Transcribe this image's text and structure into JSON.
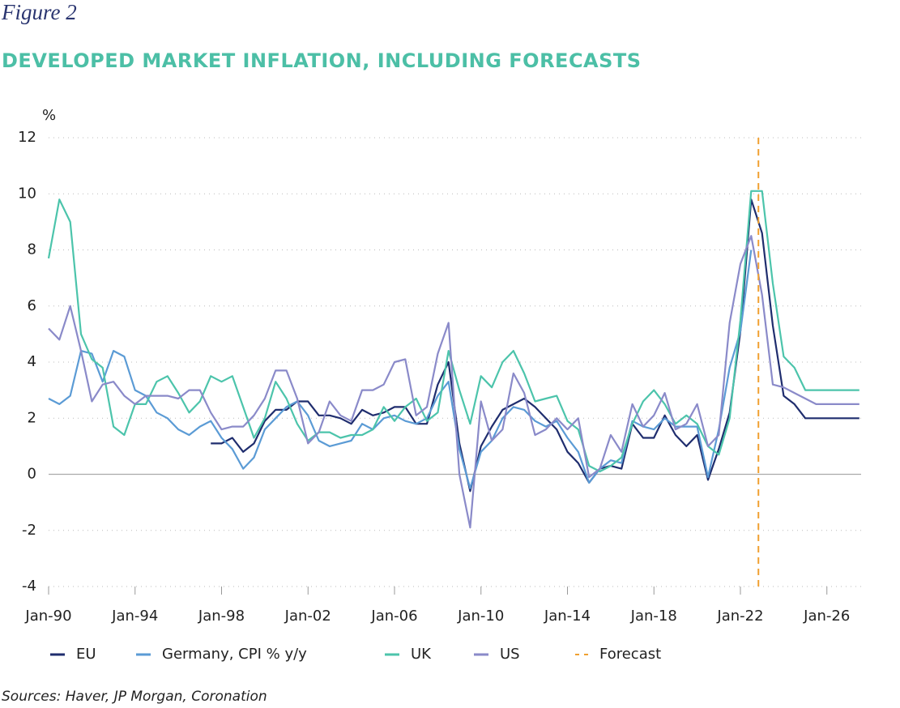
{
  "figure_label": "Figure 2",
  "sources": "Sources: Haver, JP Morgan, Coronation",
  "chart_data": {
    "type": "line",
    "title": "DEVELOPED MARKET INFLATION, INCLUDING FORECASTS",
    "y_label": "%",
    "x": [
      "1990-01",
      "1990-07",
      "1991-01",
      "1991-07",
      "1992-01",
      "1992-07",
      "1993-01",
      "1993-07",
      "1994-01",
      "1994-07",
      "1995-01",
      "1995-07",
      "1996-01",
      "1996-07",
      "1997-01",
      "1997-07",
      "1998-01",
      "1998-07",
      "1999-01",
      "1999-07",
      "2000-01",
      "2000-07",
      "2001-01",
      "2001-07",
      "2002-01",
      "2002-07",
      "2003-01",
      "2003-07",
      "2004-01",
      "2004-07",
      "2005-01",
      "2005-07",
      "2006-01",
      "2006-07",
      "2007-01",
      "2007-07",
      "2008-01",
      "2008-07",
      "2009-01",
      "2009-07",
      "2010-01",
      "2010-07",
      "2011-01",
      "2011-07",
      "2012-01",
      "2012-07",
      "2013-01",
      "2013-07",
      "2014-01",
      "2014-07",
      "2015-01",
      "2015-07",
      "2016-01",
      "2016-07",
      "2017-01",
      "2017-07",
      "2018-01",
      "2018-07",
      "2019-01",
      "2019-07",
      "2020-01",
      "2020-07",
      "2021-01",
      "2021-07",
      "2022-01",
      "2022-07",
      "2023-01",
      "2023-07",
      "2024-01",
      "2024-07",
      "2025-01",
      "2025-07",
      "2026-01",
      "2026-07",
      "2027-01",
      "2027-07"
    ],
    "xlim": [
      "1990-01",
      "2027-08"
    ],
    "xticks": [
      {
        "value": "1990-01",
        "label": "Jan-90"
      },
      {
        "value": "1994-01",
        "label": "Jan-94"
      },
      {
        "value": "1998-01",
        "label": "Jan-98"
      },
      {
        "value": "2002-01",
        "label": "Jan-02"
      },
      {
        "value": "2006-01",
        "label": "Jan-06"
      },
      {
        "value": "2010-01",
        "label": "Jan-10"
      },
      {
        "value": "2014-01",
        "label": "Jan-14"
      },
      {
        "value": "2018-01",
        "label": "Jan-18"
      },
      {
        "value": "2022-01",
        "label": "Jan-22"
      },
      {
        "value": "2026-01",
        "label": "Jan-26"
      }
    ],
    "ylim": [
      -4,
      12
    ],
    "yticks": [
      -4,
      -2,
      0,
      2,
      4,
      6,
      8,
      10,
      12
    ],
    "grid": true,
    "series": [
      {
        "name": "EU",
        "color": "#1f2d6e",
        "values": [
          null,
          null,
          null,
          null,
          null,
          null,
          null,
          null,
          null,
          null,
          null,
          null,
          null,
          null,
          null,
          1.1,
          1.1,
          1.3,
          0.8,
          1.1,
          1.9,
          2.3,
          2.3,
          2.6,
          2.6,
          2.1,
          2.1,
          2.0,
          1.8,
          2.3,
          2.1,
          2.2,
          2.4,
          2.4,
          1.8,
          1.8,
          3.2,
          4.0,
          1.1,
          -0.6,
          1.0,
          1.7,
          2.3,
          2.5,
          2.7,
          2.4,
          2.0,
          1.6,
          0.8,
          0.4,
          -0.3,
          0.2,
          0.3,
          0.2,
          1.8,
          1.3,
          1.3,
          2.1,
          1.4,
          1.0,
          1.4,
          -0.2,
          0.9,
          2.2,
          5.1,
          9.8,
          8.6,
          5.3,
          2.8,
          2.5,
          2.0,
          2.0,
          2.0,
          2.0,
          2.0,
          2.0
        ]
      },
      {
        "name": "Germany, CPI % y/y",
        "color": "#5b9bd5",
        "values": [
          2.7,
          2.5,
          2.8,
          4.4,
          4.3,
          3.3,
          4.4,
          4.2,
          3.0,
          2.8,
          2.2,
          2.0,
          1.6,
          1.4,
          1.7,
          1.9,
          1.3,
          0.9,
          0.2,
          0.6,
          1.6,
          2.0,
          2.4,
          2.6,
          2.1,
          1.2,
          1.0,
          1.1,
          1.2,
          1.8,
          1.6,
          2.0,
          2.1,
          1.9,
          1.8,
          2.0,
          2.8,
          3.3,
          0.9,
          -0.5,
          0.8,
          1.2,
          2.0,
          2.4,
          2.3,
          1.9,
          1.7,
          1.9,
          1.3,
          0.8,
          -0.3,
          0.2,
          0.5,
          0.4,
          1.9,
          1.7,
          1.6,
          2.0,
          1.7,
          1.7,
          1.7,
          -0.1,
          1.6,
          3.8,
          5.1,
          8.0,
          null,
          null,
          null,
          null,
          null,
          null,
          null,
          null,
          null,
          null
        ]
      },
      {
        "name": "UK",
        "color": "#4cc4ab",
        "values": [
          7.7,
          9.8,
          9.0,
          5.0,
          4.1,
          3.8,
          1.7,
          1.4,
          2.5,
          2.5,
          3.3,
          3.5,
          2.9,
          2.2,
          2.6,
          3.5,
          3.3,
          3.5,
          2.4,
          1.3,
          2.0,
          3.3,
          2.7,
          1.8,
          1.2,
          1.5,
          1.5,
          1.3,
          1.4,
          1.4,
          1.6,
          2.4,
          1.9,
          2.4,
          2.7,
          1.9,
          2.2,
          4.4,
          3.0,
          1.8,
          3.5,
          3.1,
          4.0,
          4.4,
          3.6,
          2.6,
          2.7,
          2.8,
          1.9,
          1.6,
          0.3,
          0.1,
          0.3,
          0.6,
          1.8,
          2.6,
          3.0,
          2.5,
          1.8,
          2.1,
          1.8,
          1.0,
          0.7,
          2.0,
          5.5,
          10.1,
          10.1,
          6.8,
          4.2,
          3.8,
          3.0,
          3.0,
          3.0,
          3.0,
          3.0,
          3.0
        ]
      },
      {
        "name": "US",
        "color": "#8a8ac9",
        "values": [
          5.2,
          4.8,
          6.0,
          4.4,
          2.6,
          3.2,
          3.3,
          2.8,
          2.5,
          2.8,
          2.8,
          2.8,
          2.7,
          3.0,
          3.0,
          2.2,
          1.6,
          1.7,
          1.7,
          2.1,
          2.7,
          3.7,
          3.7,
          2.7,
          1.1,
          1.5,
          2.6,
          2.1,
          1.9,
          3.0,
          3.0,
          3.2,
          4.0,
          4.1,
          2.1,
          2.4,
          4.3,
          5.4,
          0.0,
          -1.9,
          2.6,
          1.2,
          1.6,
          3.6,
          2.9,
          1.4,
          1.6,
          2.0,
          1.6,
          2.0,
          -0.1,
          0.2,
          1.4,
          0.8,
          2.5,
          1.7,
          2.1,
          2.9,
          1.6,
          1.8,
          2.5,
          1.0,
          1.4,
          5.4,
          7.5,
          8.5,
          6.4,
          3.2,
          3.1,
          2.9,
          2.7,
          2.5,
          2.5,
          2.5,
          2.5,
          2.5
        ]
      }
    ],
    "forecast": {
      "name": "Forecast",
      "x": "2022-11",
      "color": "#f0a030"
    }
  }
}
